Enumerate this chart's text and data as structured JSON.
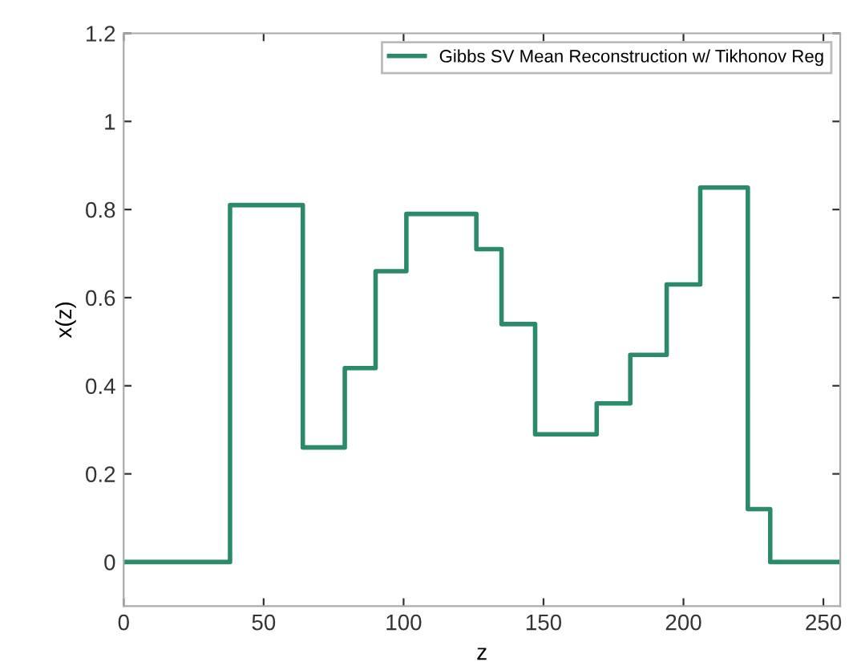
{
  "chart_data": {
    "type": "step",
    "xlabel": "z",
    "ylabel": "x(z)",
    "x": [
      0,
      38,
      64,
      79,
      90,
      101,
      126,
      135,
      147,
      169,
      181,
      194,
      206,
      223,
      231,
      256
    ],
    "series": [
      {
        "name": "Gibbs SV Mean Reconstruction w/ Tikhonov Reg",
        "color": "#2a8a6a",
        "values": [
          0,
          0.81,
          0.26,
          0.44,
          0.66,
          0.79,
          0.71,
          0.54,
          0.29,
          0.36,
          0.47,
          0.63,
          0.85,
          0.12,
          0,
          0
        ]
      }
    ],
    "xlim": [
      0,
      256
    ],
    "ylim": [
      -0.1,
      1.2
    ],
    "xticks": [
      0,
      50,
      100,
      150,
      200,
      250
    ],
    "yticks": [
      0,
      0.2,
      0.4,
      0.6,
      0.8,
      1,
      1.2
    ],
    "grid": false,
    "legend": "top right",
    "line_style": "solid",
    "marker": "none"
  }
}
